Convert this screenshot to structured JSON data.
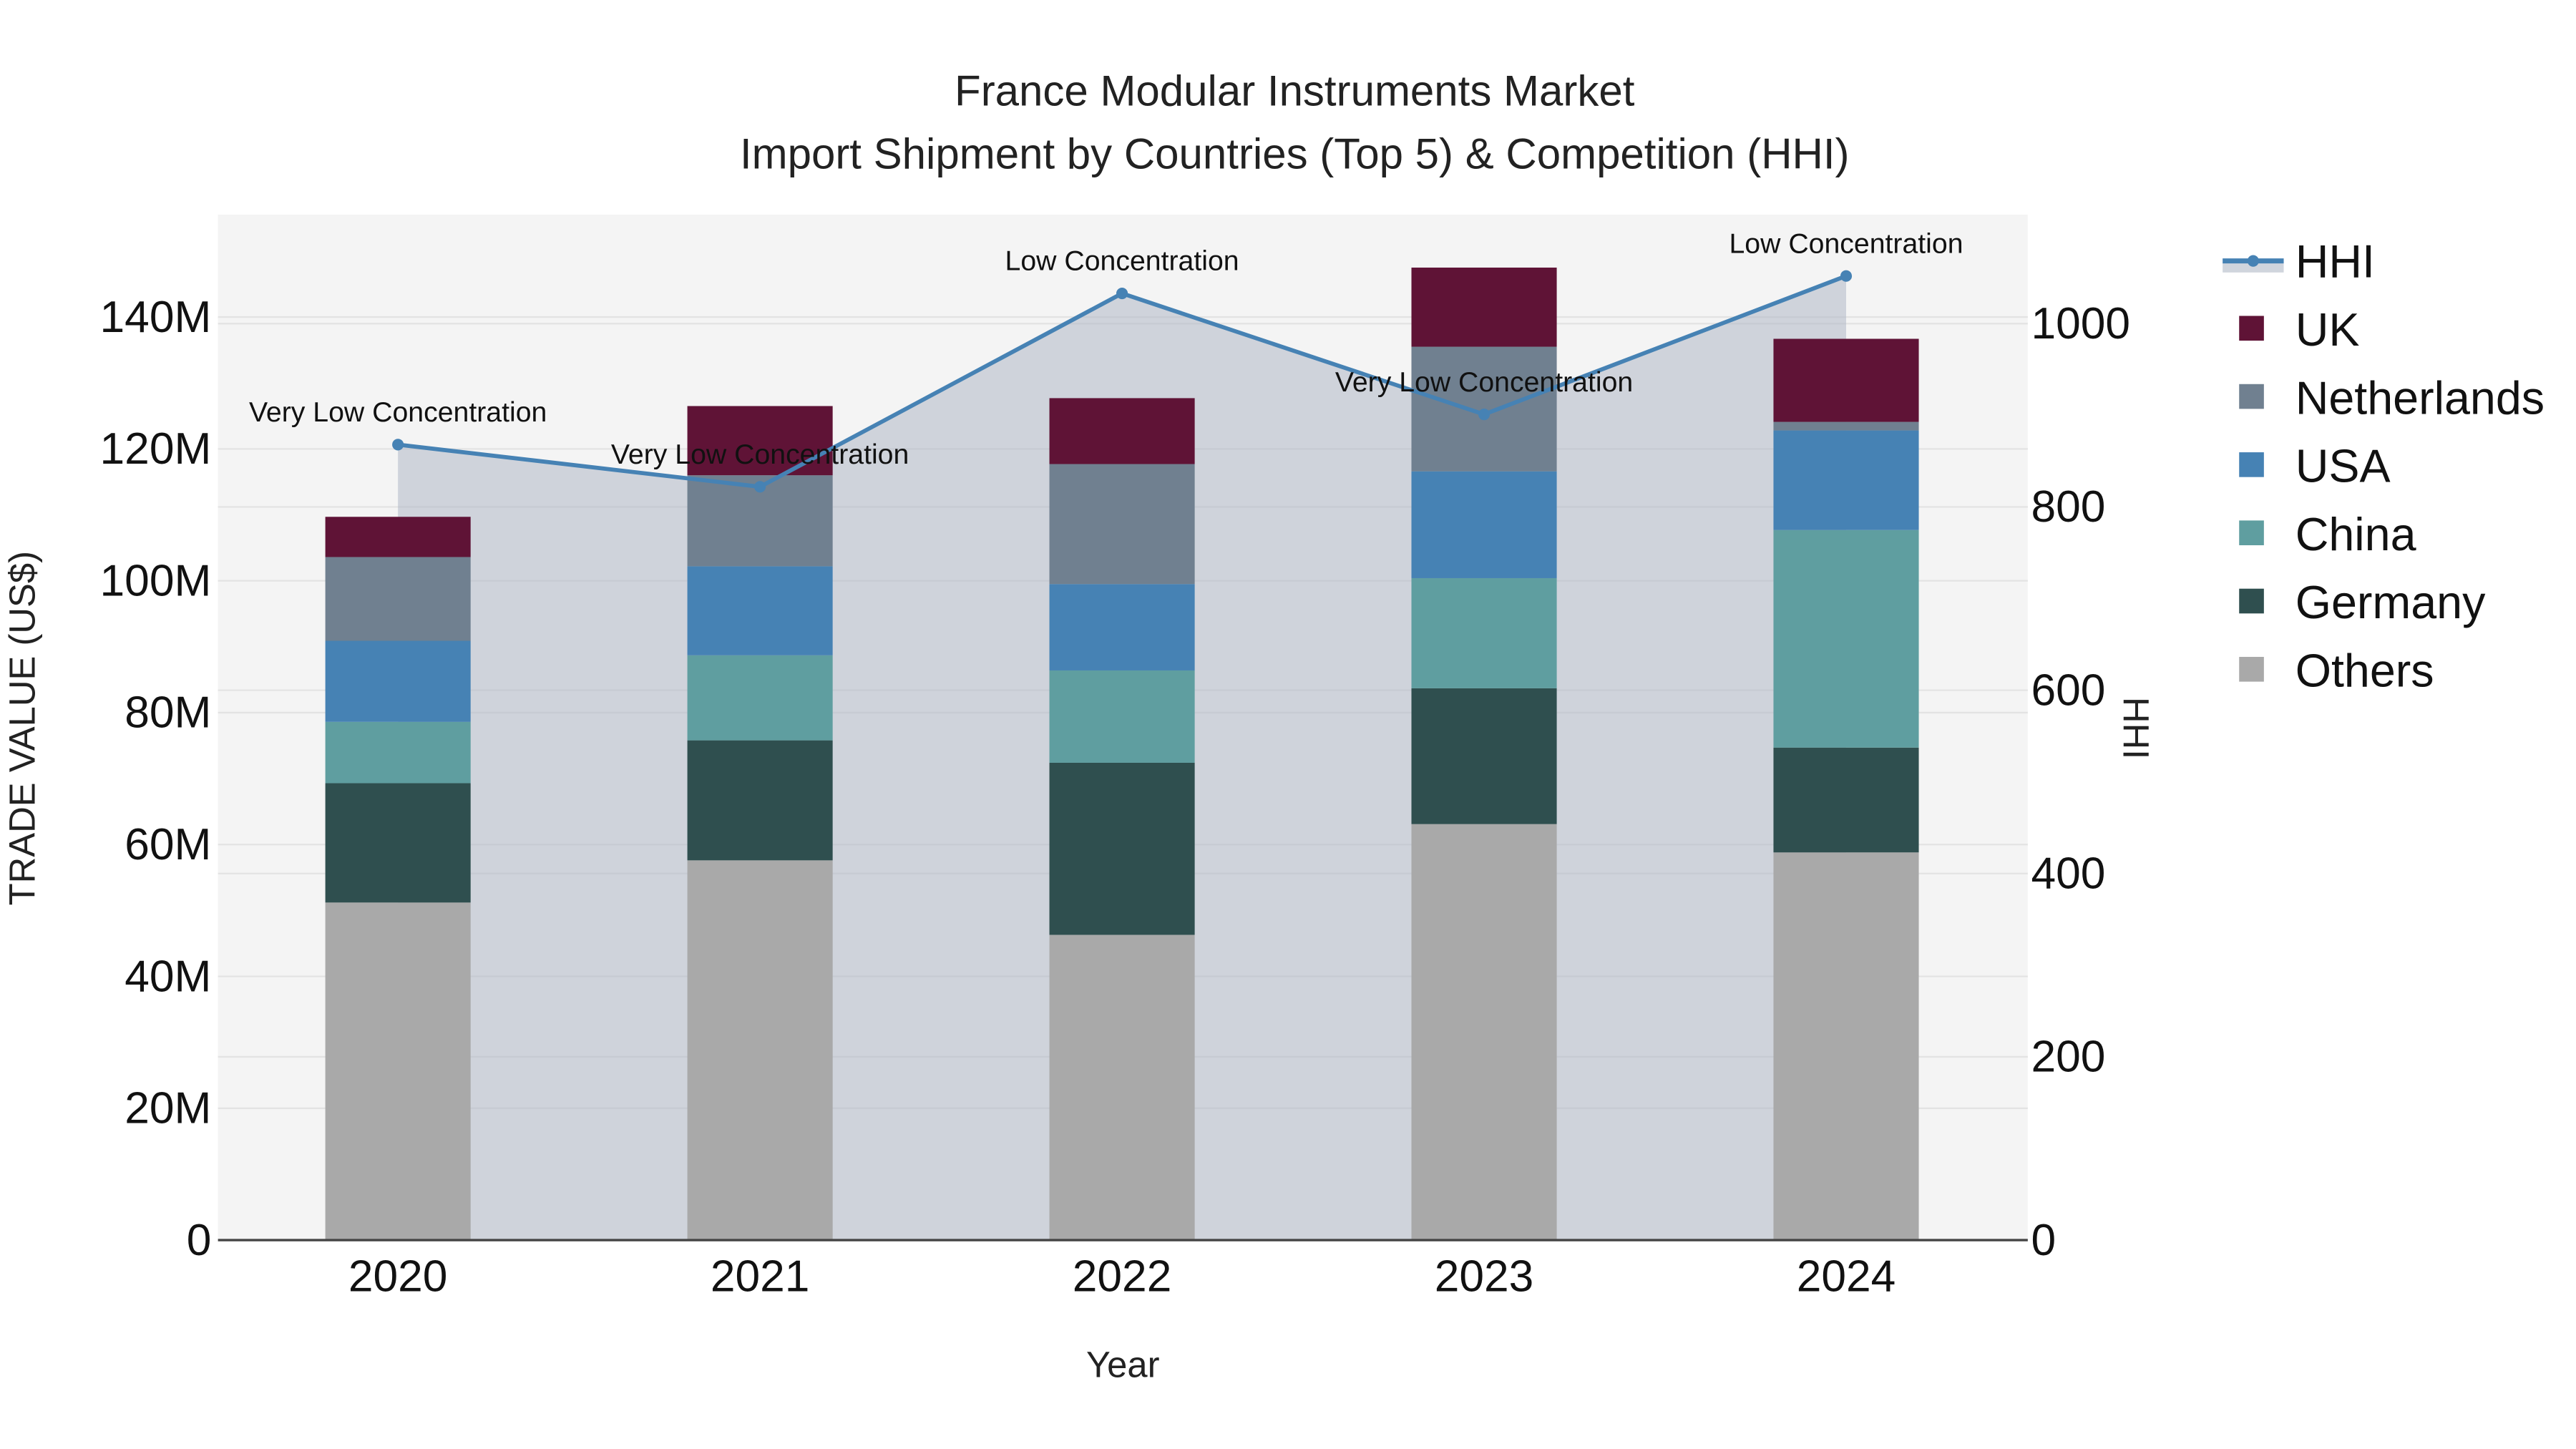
{
  "title": {
    "line1": "France Modular Instruments Market",
    "line2": "Import Shipment by Countries (Top 5) & Competition (HHI)"
  },
  "axes": {
    "x_title": "Year",
    "y_left_title": "TRADE VALUE (US$)",
    "y_right_title": "HHI",
    "y_left_ticks": [
      "0",
      "20M",
      "40M",
      "60M",
      "80M",
      "100M",
      "120M",
      "140M"
    ],
    "y_right_ticks": [
      "0",
      "200",
      "400",
      "600",
      "800",
      "1000"
    ],
    "x_ticks": [
      "2020",
      "2021",
      "2022",
      "2023",
      "2024"
    ]
  },
  "legend": [
    {
      "label": "HHI",
      "color": "#4682b4",
      "kind": "line"
    },
    {
      "label": "UK",
      "color": "#5f1336",
      "kind": "box"
    },
    {
      "label": "Netherlands",
      "color": "#708090",
      "kind": "box"
    },
    {
      "label": "USA",
      "color": "#4682b4",
      "kind": "box"
    },
    {
      "label": "China",
      "color": "#5f9ea0",
      "kind": "box"
    },
    {
      "label": "Germany",
      "color": "#2f4f4f",
      "kind": "box"
    },
    {
      "label": "Others",
      "color": "#a9a9a9",
      "kind": "box"
    }
  ],
  "annotations": [
    {
      "year": "2020",
      "text": "Very Low Concentration"
    },
    {
      "year": "2021",
      "text": "Very Low Concentration"
    },
    {
      "year": "2022",
      "text": "Low Concentration"
    },
    {
      "year": "2023",
      "text": "Very Low Concentration"
    },
    {
      "year": "2024",
      "text": "Low Concentration"
    }
  ],
  "colors": {
    "plot_bg": "#f4f4f4",
    "hhi_line": "#4682b4",
    "hhi_fill": "rgba(176,184,198,0.55)",
    "UK": "#5f1336",
    "Netherlands": "#708090",
    "USA": "#4682b4",
    "China": "#5f9ea0",
    "Germany": "#2f4f4f",
    "Others": "#a9a9a9"
  },
  "chart_data": {
    "type": "bar",
    "subtype": "stacked bar with line overlay (secondary axis)",
    "title": "France Modular Instruments Market - Import Shipment by Countries (Top 5) & Competition (HHI)",
    "xlabel": "Year",
    "ylabel": "TRADE VALUE (US$)",
    "y2label": "HHI",
    "categories": [
      "2020",
      "2021",
      "2022",
      "2023",
      "2024"
    ],
    "ylim": [
      0,
      155000000
    ],
    "y2lim": [
      0,
      1110
    ],
    "legend_position": "right",
    "grid": true,
    "series": [
      {
        "name": "Others",
        "type": "bar",
        "values": [
          51200000,
          57600000,
          46300000,
          63100000,
          58800000
        ]
      },
      {
        "name": "Germany",
        "type": "bar",
        "values": [
          18100000,
          18200000,
          26100000,
          20600000,
          15900000
        ]
      },
      {
        "name": "China",
        "type": "bar",
        "values": [
          9300000,
          12900000,
          14000000,
          16700000,
          33000000
        ]
      },
      {
        "name": "USA",
        "type": "bar",
        "values": [
          12300000,
          13500000,
          13100000,
          16200000,
          15100000
        ]
      },
      {
        "name": "Netherlands",
        "type": "bar",
        "values": [
          12700000,
          13800000,
          18200000,
          18900000,
          1300000
        ]
      },
      {
        "name": "UK",
        "type": "bar",
        "values": [
          6100000,
          10500000,
          10000000,
          12000000,
          12600000
        ]
      },
      {
        "name": "HHI",
        "type": "line",
        "axis": "right",
        "values": [
          868,
          822,
          1033,
          901,
          1052
        ]
      }
    ],
    "totals": [
      109700000,
      126500000,
      127700000,
      147500000,
      136700000
    ],
    "annotations": [
      "Very Low Concentration",
      "Very Low Concentration",
      "Low Concentration",
      "Very Low Concentration",
      "Low Concentration"
    ]
  }
}
